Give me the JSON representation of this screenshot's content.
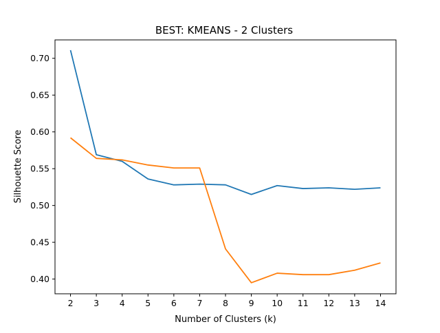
{
  "chart_data": {
    "type": "line",
    "title": "BEST: KMEANS - 2 Clusters",
    "xlabel": "Number of Clusters (k)",
    "ylabel": "Silhouette Score",
    "x": [
      2,
      3,
      4,
      5,
      6,
      7,
      8,
      9,
      10,
      11,
      12,
      13,
      14
    ],
    "x_ticks": [
      "2",
      "3",
      "4",
      "5",
      "6",
      "7",
      "8",
      "9",
      "10",
      "11",
      "12",
      "13",
      "14"
    ],
    "y_ticks": [
      "0.40",
      "0.45",
      "0.50",
      "0.55",
      "0.60",
      "0.65",
      "0.70"
    ],
    "y_tick_values": [
      0.4,
      0.45,
      0.5,
      0.55,
      0.6,
      0.65,
      0.7
    ],
    "xlim": [
      1.4,
      14.6
    ],
    "ylim": [
      0.38,
      0.725
    ],
    "grid": false,
    "legend": false,
    "series": [
      {
        "color": "#1f77b4",
        "values": [
          0.711,
          0.569,
          0.56,
          0.536,
          0.528,
          0.529,
          0.528,
          0.515,
          0.527,
          0.523,
          0.524,
          0.522,
          0.524
        ]
      },
      {
        "color": "#ff7f0e",
        "values": [
          0.592,
          0.564,
          0.562,
          0.555,
          0.551,
          0.551,
          0.441,
          0.395,
          0.408,
          0.406,
          0.406,
          0.412,
          0.422
        ]
      }
    ]
  }
}
